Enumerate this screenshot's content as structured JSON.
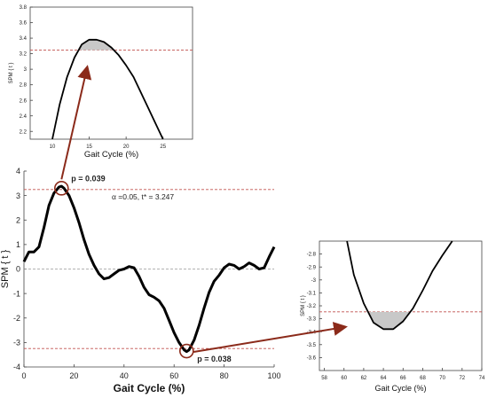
{
  "colors": {
    "threshold": "#c0504d",
    "curve": "#000000",
    "arrow": "#8b2a1a",
    "shade": "#c8c8c8",
    "zero": "#999999"
  },
  "chart_data": [
    {
      "id": "main",
      "type": "line",
      "xlabel": "Gait Cycle (%)",
      "ylabel": "SPM { t }",
      "xlim": [
        0,
        100
      ],
      "ylim": [
        -4,
        4
      ],
      "xticks": [
        "0",
        "20",
        "40",
        "60",
        "80",
        "100"
      ],
      "yticks": [
        "-4",
        "-3",
        "-2",
        "-1",
        "0",
        "1",
        "2",
        "3",
        "4"
      ],
      "threshold": 3.247,
      "threshold_label": "α  =0.05,    t* = 3.247",
      "annotations": [
        {
          "text": "p = 0.039",
          "x": 15,
          "y": 3.3
        },
        {
          "text": "p = 0.038",
          "x": 65,
          "y": -3.35
        }
      ],
      "series": [
        {
          "x": [
            0,
            2,
            4,
            6,
            8,
            10,
            12,
            14,
            15,
            16,
            18,
            20,
            22,
            24,
            26,
            28,
            30,
            32,
            34,
            36,
            38,
            40,
            42,
            44,
            46,
            48,
            50,
            52,
            54,
            56,
            58,
            60,
            62,
            64,
            65,
            66,
            68,
            70,
            72,
            74,
            76,
            78,
            80,
            82,
            84,
            86,
            88,
            90,
            92,
            94,
            96,
            98,
            100
          ],
          "y": [
            0.3,
            0.7,
            0.7,
            0.9,
            1.7,
            2.6,
            3.1,
            3.35,
            3.38,
            3.3,
            3.0,
            2.5,
            1.9,
            1.2,
            0.6,
            0.15,
            -0.2,
            -0.4,
            -0.35,
            -0.2,
            -0.05,
            0.0,
            0.1,
            0.05,
            -0.3,
            -0.75,
            -1.05,
            -1.15,
            -1.3,
            -1.6,
            -2.1,
            -2.6,
            -3.0,
            -3.3,
            -3.37,
            -3.3,
            -2.9,
            -2.3,
            -1.6,
            -0.95,
            -0.5,
            -0.25,
            0.05,
            0.2,
            0.15,
            0.0,
            0.1,
            0.25,
            0.15,
            0.0,
            0.05,
            0.5,
            0.9
          ]
        }
      ]
    },
    {
      "id": "inset-top",
      "type": "line",
      "xlabel": "Gait Cycle (%)",
      "ylabel": "SPM { t }",
      "xlim": [
        7,
        29
      ],
      "ylim": [
        2.1,
        3.8
      ],
      "xticks": [
        "10",
        "15",
        "20",
        "25"
      ],
      "yticks": [
        "2.2",
        "2.4",
        "2.6",
        "2.8",
        "3",
        "3.2",
        "3.4",
        "3.6",
        "3.8"
      ],
      "threshold": 3.247,
      "series": [
        {
          "x": [
            10,
            11,
            12,
            13,
            14,
            15,
            16,
            17,
            18,
            19,
            20,
            21,
            22,
            23,
            24,
            25
          ],
          "y": [
            2.1,
            2.55,
            2.9,
            3.15,
            3.32,
            3.38,
            3.38,
            3.35,
            3.28,
            3.18,
            3.05,
            2.9,
            2.7,
            2.5,
            2.3,
            2.1
          ]
        }
      ]
    },
    {
      "id": "inset-right",
      "type": "line",
      "xlabel": "Gait Cycle (%)",
      "ylabel": "SPM { t }",
      "xlim": [
        57.5,
        74
      ],
      "ylim": [
        -3.7,
        -2.7
      ],
      "xticks": [
        "58",
        "60",
        "62",
        "64",
        "66",
        "68",
        "70",
        "72",
        "74"
      ],
      "yticks": [
        "-2.8",
        "-2.9",
        "-3",
        "-3.1",
        "-3.2",
        "-3.3",
        "-3.4",
        "-3.5",
        "-3.6"
      ],
      "threshold": -3.247,
      "series": [
        {
          "x": [
            60.3,
            61,
            62,
            63,
            64,
            65,
            66,
            67,
            68,
            69,
            70,
            71
          ],
          "y": [
            -2.7,
            -2.96,
            -3.18,
            -3.33,
            -3.38,
            -3.38,
            -3.32,
            -3.22,
            -3.08,
            -2.93,
            -2.81,
            -2.7
          ]
        }
      ]
    }
  ]
}
